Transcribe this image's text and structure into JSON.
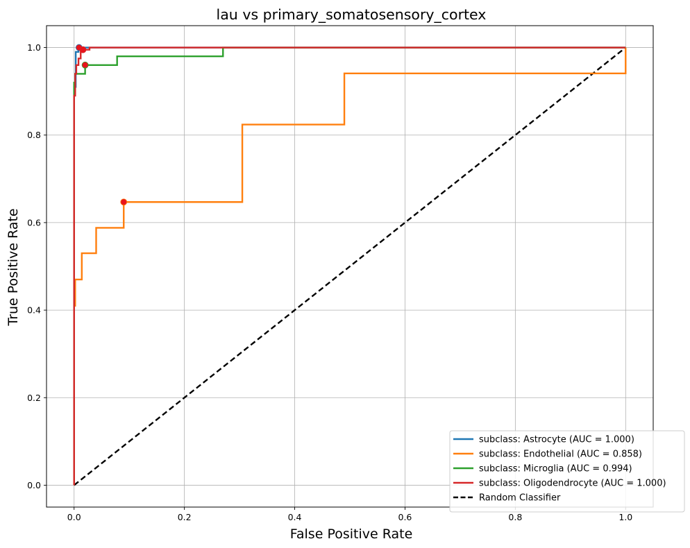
{
  "chart_data": {
    "type": "line",
    "title": "lau vs primary_somatosensory_cortex",
    "xlabel": "False Positive Rate",
    "ylabel": "True Positive Rate",
    "xlim": [
      -0.05,
      1.05
    ],
    "ylim": [
      -0.05,
      1.05
    ],
    "xticks": [
      "0.0",
      "0.2",
      "0.4",
      "0.6",
      "0.8",
      "1.0"
    ],
    "yticks": [
      "0.0",
      "0.2",
      "0.4",
      "0.6",
      "0.8",
      "1.0"
    ],
    "grid": true,
    "legend_position": "lower-right",
    "series": [
      {
        "name": "subclass: Astrocyte (AUC = 1.000)",
        "color": "#1f77b4",
        "style": "solid",
        "points": [
          [
            0,
            0
          ],
          [
            0,
            0.91
          ],
          [
            0.003,
            0.91
          ],
          [
            0.003,
            0.99
          ],
          [
            0.008,
            0.99
          ],
          [
            0.008,
            1.0
          ],
          [
            1.0,
            1.0
          ]
        ],
        "marker": [
          0.009,
          1.0
        ]
      },
      {
        "name": "subclass: Endothelial (AUC = 0.858)",
        "color": "#ff7f0e",
        "style": "solid",
        "points": [
          [
            0,
            0
          ],
          [
            0,
            0.41
          ],
          [
            0.002,
            0.41
          ],
          [
            0.002,
            0.47
          ],
          [
            0.014,
            0.47
          ],
          [
            0.014,
            0.53
          ],
          [
            0.04,
            0.53
          ],
          [
            0.04,
            0.588
          ],
          [
            0.09,
            0.588
          ],
          [
            0.09,
            0.647
          ],
          [
            0.305,
            0.647
          ],
          [
            0.305,
            0.824
          ],
          [
            0.49,
            0.824
          ],
          [
            0.49,
            0.941
          ],
          [
            1.0,
            0.941
          ],
          [
            1.0,
            1.0
          ]
        ],
        "marker": [
          0.09,
          0.647
        ]
      },
      {
        "name": "subclass: Microglia (AUC = 0.994)",
        "color": "#2ca02c",
        "style": "solid",
        "points": [
          [
            0,
            0
          ],
          [
            0,
            0.92
          ],
          [
            0.002,
            0.92
          ],
          [
            0.002,
            0.94
          ],
          [
            0.02,
            0.94
          ],
          [
            0.02,
            0.96
          ],
          [
            0.078,
            0.96
          ],
          [
            0.078,
            0.98
          ],
          [
            0.27,
            0.98
          ],
          [
            0.27,
            1.0
          ],
          [
            1.0,
            1.0
          ]
        ],
        "marker": [
          0.02,
          0.96
        ]
      },
      {
        "name": "subclass: Oligodendrocyte (AUC = 1.000)",
        "color": "#d62728",
        "style": "solid",
        "points": [
          [
            0,
            0
          ],
          [
            0,
            0.89
          ],
          [
            0.002,
            0.89
          ],
          [
            0.002,
            0.94
          ],
          [
            0.004,
            0.94
          ],
          [
            0.004,
            0.96
          ],
          [
            0.008,
            0.96
          ],
          [
            0.008,
            0.975
          ],
          [
            0.012,
            0.975
          ],
          [
            0.012,
            0.99
          ],
          [
            0.017,
            0.99
          ],
          [
            0.017,
            0.995
          ],
          [
            0.028,
            0.995
          ],
          [
            0.028,
            1.0
          ],
          [
            1.0,
            1.0
          ]
        ],
        "marker": [
          0.016,
          0.995
        ]
      },
      {
        "name": "Random Classifier",
        "color": "#000000",
        "style": "dashed",
        "points": [
          [
            0,
            0
          ],
          [
            1,
            1
          ]
        ]
      }
    ]
  }
}
